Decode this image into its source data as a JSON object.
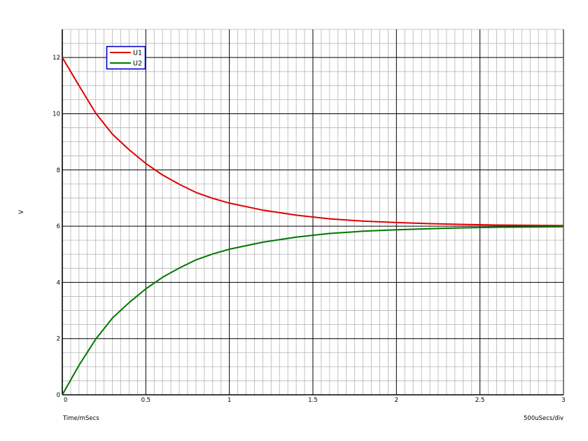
{
  "chart_data": {
    "type": "line",
    "ylabel": "V",
    "xlabel": "Time/mSecs",
    "scale_label": "500uSecs/div",
    "xlim": [
      0,
      3
    ],
    "ylim": [
      0,
      13
    ],
    "x_ticks": [
      0,
      0.5,
      1,
      1.5,
      2,
      2.5,
      3
    ],
    "x_tick_labels": [
      "0",
      "0.5",
      "1",
      "1.5",
      "2",
      "2.5",
      "3"
    ],
    "y_ticks": [
      0,
      2,
      4,
      6,
      8,
      10,
      12
    ],
    "y_tick_labels": [
      "0",
      "2",
      "4",
      "6",
      "8",
      "10",
      "12"
    ],
    "grid": true,
    "legend_position": "top-left",
    "series": [
      {
        "name": "U1",
        "color": "#e00000",
        "x": [
          0,
          0.1,
          0.2,
          0.3,
          0.4,
          0.5,
          0.6,
          0.7,
          0.8,
          0.9,
          1.0,
          1.2,
          1.4,
          1.6,
          1.8,
          2.0,
          2.2,
          2.4,
          2.6,
          2.8,
          3.0
        ],
        "values": [
          12,
          11.0,
          10.02,
          9.27,
          8.72,
          8.23,
          7.82,
          7.49,
          7.2,
          6.99,
          6.82,
          6.57,
          6.39,
          6.26,
          6.18,
          6.13,
          6.09,
          6.06,
          6.04,
          6.03,
          6.02
        ]
      },
      {
        "name": "U2",
        "color": "#007700",
        "x": [
          0,
          0.1,
          0.2,
          0.3,
          0.4,
          0.5,
          0.6,
          0.7,
          0.8,
          0.9,
          1.0,
          1.2,
          1.4,
          1.6,
          1.8,
          2.0,
          2.2,
          2.4,
          2.6,
          2.8,
          3.0
        ],
        "values": [
          0,
          1.05,
          1.98,
          2.73,
          3.28,
          3.77,
          4.18,
          4.51,
          4.8,
          5.01,
          5.18,
          5.43,
          5.61,
          5.74,
          5.82,
          5.87,
          5.91,
          5.94,
          5.96,
          5.97,
          5.98
        ]
      }
    ]
  },
  "colors": {
    "major_grid": "#000000",
    "minor_grid": "#b4b4b4",
    "legend_border": "#0000cc"
  }
}
